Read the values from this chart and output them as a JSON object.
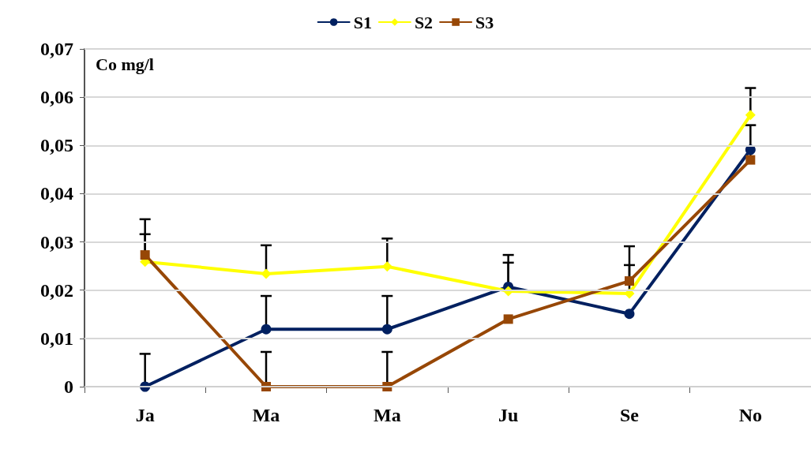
{
  "chart_data": {
    "type": "line",
    "ylabel": "Co mg/l",
    "categories": [
      "Ja",
      "Ma",
      "Ma",
      "Ju",
      "Se",
      "No"
    ],
    "series": [
      {
        "name": "S1",
        "color": "#002060",
        "marker": "circle",
        "values": [
          0,
          0.0119,
          0.0119,
          0.0207,
          0.0151,
          0.0491
        ],
        "errors": [
          [
            0,
            0.0068
          ],
          [
            0.0119,
            0.0188
          ],
          [
            0.0119,
            0.0188
          ],
          [
            0.0207,
            0.0273
          ],
          null,
          null
        ]
      },
      {
        "name": "S2",
        "color": "#ffff00",
        "marker": "diamond",
        "values": [
          0.0259,
          0.0234,
          0.0249,
          0.0198,
          0.0193,
          0.0563
        ],
        "errors": [
          [
            0.0259,
            0.0316
          ],
          [
            0.0234,
            0.0293
          ],
          [
            0.0249,
            0.0307
          ],
          [
            0.0198,
            0.0257
          ],
          [
            0.0193,
            0.0252
          ],
          [
            0.0563,
            0.0619
          ]
        ]
      },
      {
        "name": "S3",
        "color": "#974706",
        "marker": "square",
        "values": [
          0.0273,
          0,
          0,
          0.014,
          0.0219,
          0.047
        ],
        "errors": [
          [
            0.0273,
            0.0347
          ],
          [
            0,
            0.0072
          ],
          [
            0,
            0.0072
          ],
          null,
          [
            0.0219,
            0.0291
          ],
          [
            0.047,
            0.0542
          ]
        ]
      }
    ],
    "ylim": [
      0,
      0.07
    ],
    "yticks": [
      {
        "value": 0,
        "label": "0"
      },
      {
        "value": 0.01,
        "label": "0,01"
      },
      {
        "value": 0.02,
        "label": "0,02"
      },
      {
        "value": 0.03,
        "label": "0,03"
      },
      {
        "value": 0.04,
        "label": "0,04"
      },
      {
        "value": 0.05,
        "label": "0,05"
      },
      {
        "value": 0.06,
        "label": "0,06"
      },
      {
        "value": 0.07,
        "label": "0,07"
      }
    ],
    "grid": "y",
    "legend": "top",
    "line_style": "solid"
  }
}
